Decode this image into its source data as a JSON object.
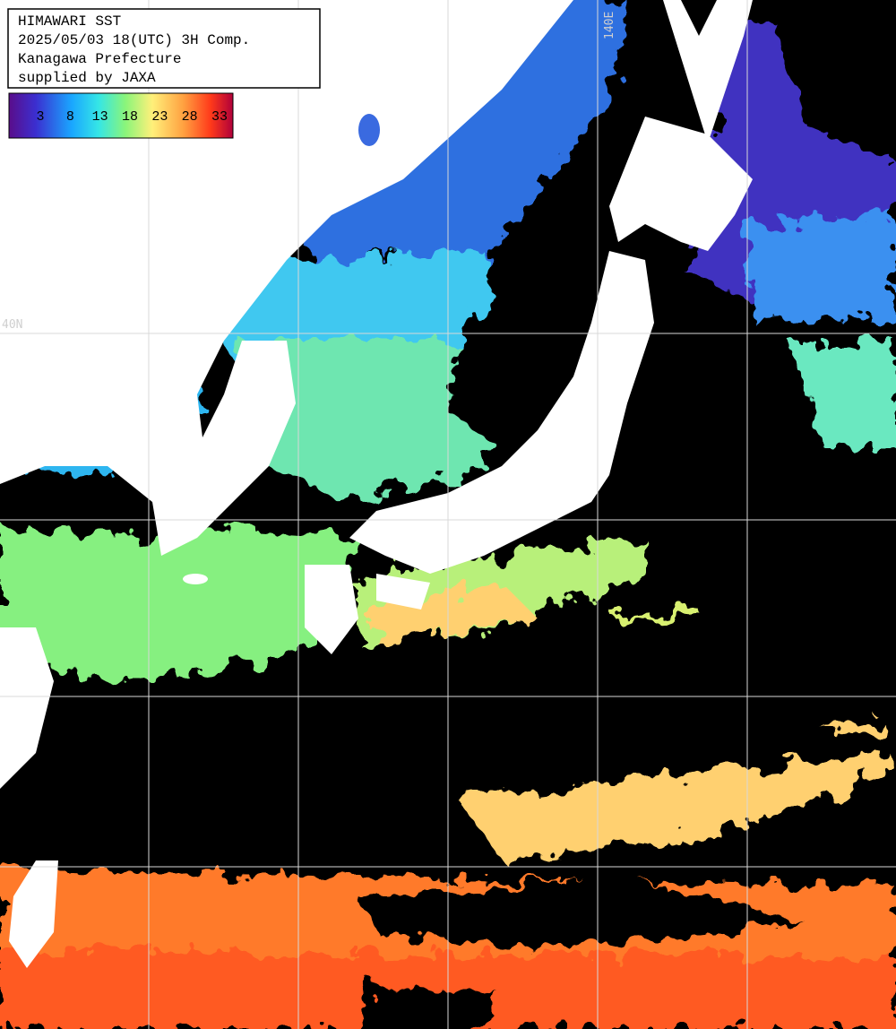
{
  "header": {
    "lines": [
      "HIMAWARI SST",
      "2025/05/03 18(UTC) 3H Comp.",
      "Kanagawa Prefecture",
      "supplied by JAXA"
    ]
  },
  "legend": {
    "ticks": [
      3,
      8,
      13,
      18,
      23,
      28,
      33
    ]
  },
  "grid_labels": {
    "latitude": "40N",
    "longitude": "140E"
  }
}
